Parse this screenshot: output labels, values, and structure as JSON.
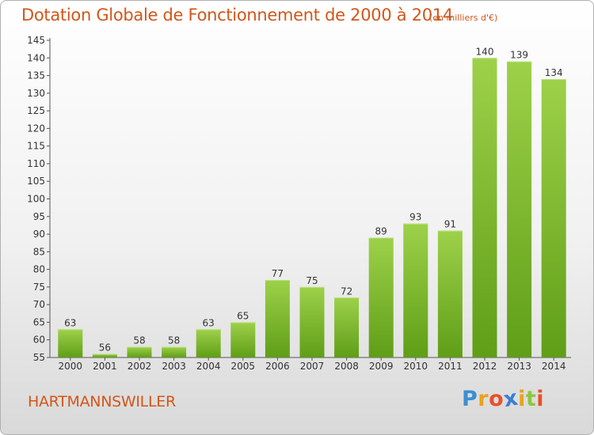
{
  "chart_data": {
    "type": "bar",
    "title": "Dotation Globale de Fonctionnement de 2000 à 2014",
    "unit": "(en milliers d'€)",
    "categories": [
      "2000",
      "2001",
      "2002",
      "2003",
      "2004",
      "2005",
      "2006",
      "2007",
      "2008",
      "2009",
      "2010",
      "2011",
      "2012",
      "2013",
      "2014"
    ],
    "values": [
      63,
      56,
      58,
      58,
      63,
      65,
      77,
      75,
      72,
      89,
      93,
      91,
      140,
      139,
      134
    ],
    "ylim": [
      55,
      145
    ],
    "yticks": [
      55,
      60,
      65,
      70,
      75,
      80,
      85,
      90,
      95,
      100,
      105,
      110,
      115,
      120,
      125,
      130,
      135,
      140,
      145
    ],
    "grid": false,
    "bar_color": "#7dbf2e"
  },
  "commune": "HARTMANNSWILLER",
  "logo": {
    "text": "Proxiti",
    "letter_colors": [
      "#3b8fd1",
      "#e8a21b",
      "#e8502a",
      "#3a7fd1",
      "#e8a21b",
      "#8cc63f",
      "#e8502a"
    ]
  }
}
